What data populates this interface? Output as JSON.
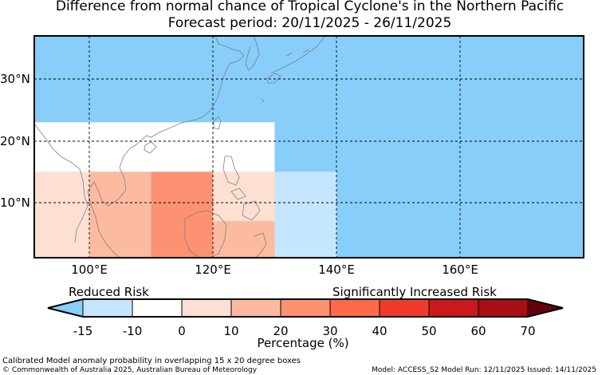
{
  "title_line1": "Difference from normal chance of Tropical Cyclone's in the Northern Pacific",
  "title_line2": "Forecast period: 20/11/2025 - 26/11/2025",
  "lat_ticks": [
    "30°N",
    "20°N",
    "10°N"
  ],
  "lon_ticks": [
    "100°E",
    "120°E",
    "140°E",
    "160°E"
  ],
  "colors": {
    "ocean": "#87cefa",
    "land_outline": "#808080",
    "grid": "#000000"
  },
  "anomaly_cells": [
    {
      "lon_range": [
        90,
        100
      ],
      "lat_range": [
        0,
        15
      ],
      "value_range": "0 to 10",
      "color": "#fee0d2"
    },
    {
      "lon_range": [
        100,
        110
      ],
      "lat_range": [
        0,
        15
      ],
      "value_range": "10 to 20",
      "color": "#fcbba1"
    },
    {
      "lon_range": [
        110,
        120
      ],
      "lat_range": [
        0,
        15
      ],
      "value_range": "20 to 30",
      "color": "#fc9272"
    },
    {
      "lon_range": [
        120,
        130
      ],
      "lat_range": [
        7,
        15
      ],
      "value_range": "0 to 10",
      "color": "#fee0d2"
    },
    {
      "lon_range": [
        120,
        130
      ],
      "lat_range": [
        0,
        7
      ],
      "value_range": "10 to 20",
      "color": "#fcbba1"
    },
    {
      "lon_range": [
        130,
        140
      ],
      "lat_range": [
        0,
        15
      ],
      "value_range": "-15 to -10",
      "color": "#c6e6ff"
    },
    {
      "lon_range": [
        90,
        130
      ],
      "lat_range": [
        15,
        23
      ],
      "value_range": "-10 to 0",
      "color": "#ffffff"
    }
  ],
  "legend": {
    "reduced_label": "Reduced Risk",
    "increased_label": "Significantly Increased Risk",
    "unit_label": "Percentage (%)",
    "ticks": [
      "-15",
      "-10",
      "0",
      "10",
      "20",
      "30",
      "40",
      "50",
      "60",
      "70"
    ],
    "under_color": "#87cefa",
    "over_color": "#67000d",
    "bins": [
      "#c6e6ff",
      "#ffffff",
      "#fee0d2",
      "#fcbba1",
      "#fc9272",
      "#fb6a4a",
      "#ef3b2c",
      "#cb181d",
      "#a50f15"
    ]
  },
  "footer": {
    "line1": "Calibrated Model anomaly probability in overlapping 15 x 20 degree boxes",
    "line2": "© Commonwealth of Australia 2025, Australian Bureau of Meteorology",
    "model": "Model: ACCESS_S2     Model Run: 12/11/2025     Issued: 14/11/2025"
  }
}
